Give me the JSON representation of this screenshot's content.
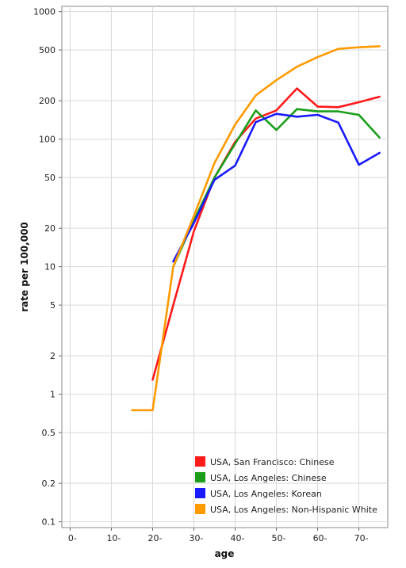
{
  "chart_data": {
    "type": "line",
    "title": "",
    "xlabel": "age",
    "ylabel": "rate per 100,000",
    "xscale": "linear",
    "yscale": "log",
    "xlim": [
      -2,
      77
    ],
    "ylim": [
      0.09,
      1100
    ],
    "grid": true,
    "legend_position": "bottom-right",
    "x_ticks": [
      0,
      10,
      20,
      30,
      40,
      50,
      60,
      70
    ],
    "x_tick_labels": [
      "0-",
      "10-",
      "20-",
      "30-",
      "40-",
      "50-",
      "60-",
      "70-"
    ],
    "y_ticks": [
      0.1,
      0.2,
      0.5,
      1,
      2,
      5,
      10,
      20,
      50,
      100,
      200,
      500,
      1000
    ],
    "y_tick_labels": [
      "0.1",
      "0.2",
      "0.5",
      "1",
      "2",
      "5",
      "10",
      "20",
      "50",
      "100",
      "200",
      "500",
      "1000"
    ],
    "series": [
      {
        "name": "USA, San Francisco: Chinese",
        "color": "#ff1a1a",
        "points": [
          [
            20,
            1.3
          ],
          [
            25,
            5
          ],
          [
            30,
            19
          ],
          [
            35,
            50
          ],
          [
            40,
            95
          ],
          [
            45,
            145
          ],
          [
            50,
            168
          ],
          [
            55,
            250
          ],
          [
            60,
            180
          ],
          [
            65,
            178
          ],
          [
            70,
            195
          ],
          [
            75,
            215
          ]
        ]
      },
      {
        "name": "USA, Los Angeles: Chinese",
        "color": "#1a9e1a",
        "points": [
          [
            25,
            10
          ],
          [
            30,
            23
          ],
          [
            35,
            50
          ],
          [
            40,
            92
          ],
          [
            45,
            168
          ],
          [
            50,
            118
          ],
          [
            55,
            172
          ],
          [
            60,
            165
          ],
          [
            65,
            165
          ],
          [
            70,
            155
          ],
          [
            75,
            103
          ]
        ]
      },
      {
        "name": "USA, Los Angeles: Korean",
        "color": "#1a1aff",
        "points": [
          [
            25,
            11
          ],
          [
            30,
            22
          ],
          [
            35,
            48
          ],
          [
            40,
            62
          ],
          [
            45,
            136
          ],
          [
            50,
            158
          ],
          [
            55,
            150
          ],
          [
            60,
            155
          ],
          [
            65,
            135
          ],
          [
            70,
            63
          ],
          [
            75,
            78
          ]
        ]
      },
      {
        "name": "USA, Los Angeles: Non-Hispanic White",
        "color": "#ff9a00",
        "points": [
          [
            15,
            0.75
          ],
          [
            20,
            0.75
          ],
          [
            25,
            10
          ],
          [
            30,
            25
          ],
          [
            35,
            65
          ],
          [
            40,
            130
          ],
          [
            45,
            220
          ],
          [
            50,
            290
          ],
          [
            55,
            370
          ],
          [
            60,
            440
          ],
          [
            65,
            510
          ],
          [
            70,
            525
          ],
          [
            75,
            535
          ]
        ]
      }
    ]
  }
}
